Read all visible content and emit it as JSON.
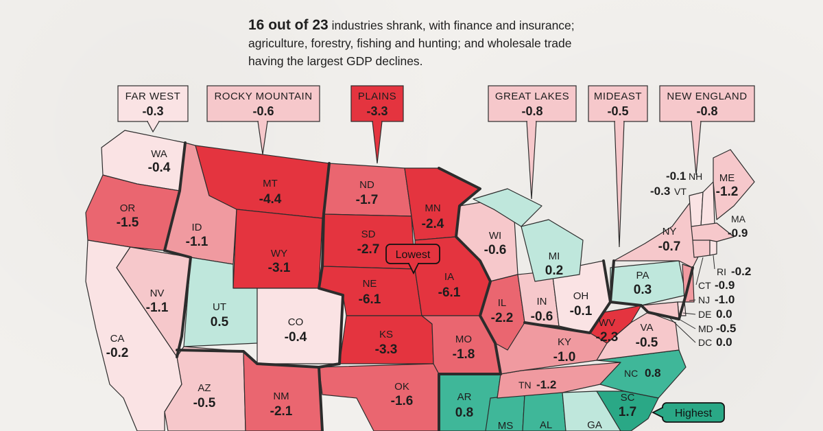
{
  "headline": {
    "lead": "16 out of 23",
    "rest": " industries shrank, with finance and insurance; agriculture, forestry, fishing and hunting; and wholesale trade having the largest GDP declines."
  },
  "colors": {
    "strong_red": "#e4343f",
    "red": "#ea6670",
    "mid_red": "#f09aa0",
    "light_red": "#f6c8cb",
    "pale_red": "#fae3e4",
    "mint": "#bfe7dc",
    "teal": "#3fb799",
    "strong_teal": "#2aa886",
    "border": "#2c2c2c"
  },
  "regions": [
    {
      "name": "FAR WEST",
      "value": "-0.3"
    },
    {
      "name": "ROCKY MOUNTAIN",
      "value": "-0.6"
    },
    {
      "name": "PLAINS",
      "value": "-3.3"
    },
    {
      "name": "GREAT LAKES",
      "value": "-0.8"
    },
    {
      "name": "MIDEAST",
      "value": "-0.5"
    },
    {
      "name": "NEW ENGLAND",
      "value": "-0.8"
    }
  ],
  "states": {
    "WA": {
      "name": "WA",
      "value": "-0.4"
    },
    "OR": {
      "name": "OR",
      "value": "-1.5"
    },
    "CA": {
      "name": "CA",
      "value": "-0.2"
    },
    "NV": {
      "name": "NV",
      "value": "-1.1"
    },
    "ID": {
      "name": "ID",
      "value": "-1.1"
    },
    "MT": {
      "name": "MT",
      "value": "-4.4"
    },
    "WY": {
      "name": "WY",
      "value": "-3.1"
    },
    "UT": {
      "name": "UT",
      "value": "0.5"
    },
    "CO": {
      "name": "CO",
      "value": "-0.4"
    },
    "AZ": {
      "name": "AZ",
      "value": "-0.5"
    },
    "NM": {
      "name": "NM",
      "value": "-2.1"
    },
    "ND": {
      "name": "ND",
      "value": "-1.7"
    },
    "SD": {
      "name": "SD",
      "value": "-2.7"
    },
    "NE": {
      "name": "NE",
      "value": "-6.1"
    },
    "KS": {
      "name": "KS",
      "value": "-3.3"
    },
    "OK": {
      "name": "OK",
      "value": "-1.6"
    },
    "MN": {
      "name": "MN",
      "value": "-2.4"
    },
    "IA": {
      "name": "IA",
      "value": "-6.1"
    },
    "MO": {
      "name": "MO",
      "value": "-1.8"
    },
    "AR": {
      "name": "AR",
      "value": "0.8"
    },
    "WI": {
      "name": "WI",
      "value": "-0.6"
    },
    "IL": {
      "name": "IL",
      "value": "-2.2"
    },
    "MI": {
      "name": "MI",
      "value": "0.2"
    },
    "IN": {
      "name": "IN",
      "value": "-0.6"
    },
    "OH": {
      "name": "OH",
      "value": "-0.1"
    },
    "KY": {
      "name": "KY",
      "value": "-1.0"
    },
    "TN": {
      "name": "TN",
      "value": "-1.2"
    },
    "MS": {
      "name": "MS",
      "value": ""
    },
    "AL": {
      "name": "AL",
      "value": ""
    },
    "GA": {
      "name": "GA",
      "value": ""
    },
    "SC": {
      "name": "SC",
      "value": "1.7"
    },
    "NC": {
      "name": "NC",
      "value": "0.8"
    },
    "VA": {
      "name": "VA",
      "value": "-0.5"
    },
    "WV": {
      "name": "WV",
      "value": "-2.3"
    },
    "PA": {
      "name": "PA",
      "value": "0.3"
    },
    "NY": {
      "name": "NY",
      "value": "-0.7"
    },
    "ME": {
      "name": "ME",
      "value": "-1.2"
    },
    "MA": {
      "name": "MA",
      "value": "-0.9"
    },
    "NH": {
      "name": "NH",
      "value": "-0.1"
    },
    "VT": {
      "name": "VT",
      "value": "-0.3"
    },
    "RI": {
      "name": "RI",
      "value": "-0.2"
    },
    "CT": {
      "name": "CT",
      "value": "-0.9"
    },
    "NJ": {
      "name": "NJ",
      "value": "-1.0"
    },
    "DE": {
      "name": "DE",
      "value": "0.0"
    },
    "MD": {
      "name": "MD",
      "value": "-0.5"
    },
    "DC": {
      "name": "DC",
      "value": "0.0"
    }
  },
  "tags": {
    "lowest": "Lowest",
    "highest": "Highest"
  }
}
